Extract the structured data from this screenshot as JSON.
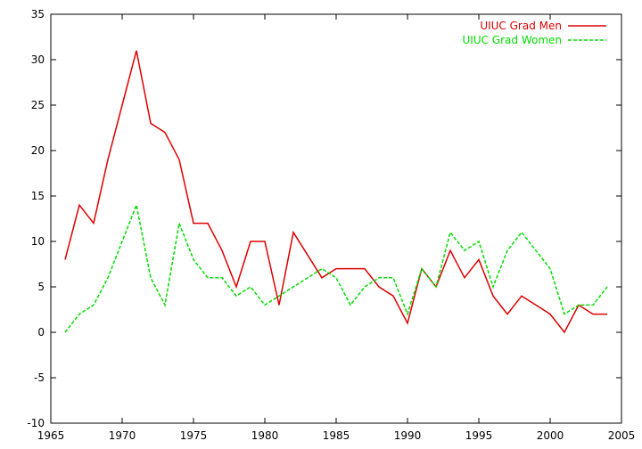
{
  "chart_data": {
    "type": "line",
    "title": "",
    "xlabel": "",
    "ylabel": "",
    "xlim": [
      1965,
      2005
    ],
    "ylim": [
      -10,
      35
    ],
    "x_ticks": [
      1965,
      1970,
      1975,
      1980,
      1985,
      1990,
      1995,
      2000,
      2005
    ],
    "y_ticks": [
      -10,
      -5,
      0,
      5,
      10,
      15,
      20,
      25,
      30,
      35
    ],
    "grid": false,
    "legend_position": "top-right",
    "x": [
      1966,
      1967,
      1968,
      1969,
      1970,
      1971,
      1972,
      1973,
      1974,
      1975,
      1976,
      1977,
      1978,
      1979,
      1980,
      1981,
      1982,
      1983,
      1984,
      1985,
      1986,
      1987,
      1988,
      1989,
      1990,
      1991,
      1992,
      1993,
      1994,
      1995,
      1996,
      1997,
      1998,
      1999,
      2000,
      2001,
      2002,
      2003,
      2004
    ],
    "series": [
      {
        "name": "UIUC Grad Men",
        "color": "#dd0000",
        "dash": "solid",
        "values": [
          8,
          14,
          12,
          19,
          25,
          31,
          23,
          22,
          19,
          12,
          12,
          9,
          5,
          10,
          10,
          3,
          11,
          8.5,
          6,
          7,
          7,
          7,
          5,
          4,
          1,
          7,
          5,
          9,
          6,
          8,
          4,
          2,
          4,
          3,
          2,
          0,
          3,
          2,
          2
        ]
      },
      {
        "name": "UIUC Grad Women",
        "color": "#00dd00",
        "dash": "dashed",
        "values": [
          0,
          2,
          3,
          6,
          10,
          14,
          6,
          3,
          12,
          8,
          6,
          6,
          4,
          5,
          3,
          4,
          5,
          6,
          7,
          6,
          3,
          5,
          6,
          6,
          2,
          7,
          5,
          11,
          9,
          10,
          5,
          9,
          11,
          9,
          7,
          2,
          3,
          3,
          5
        ]
      }
    ]
  }
}
